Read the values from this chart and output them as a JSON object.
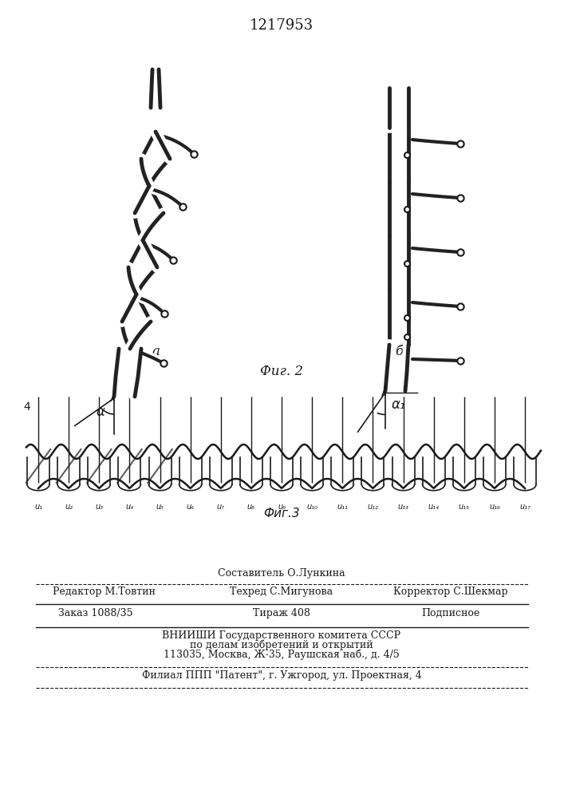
{
  "title": "1217953",
  "fig2_label": "Фиг. 2",
  "fig3_label": "Фиг.3",
  "label_a": "а",
  "label_b": "б",
  "alpha_label": "α",
  "alpha1_label": "α₁",
  "fig4_label": "4",
  "u_labels": [
    "u₁",
    "u₂",
    "u₃",
    "u₄",
    "u₅",
    "u₆",
    "u₇",
    "u₈",
    "u₉",
    "u₁₀",
    "u₁₁",
    "u₁₂",
    "u₁₃",
    "u₁₄",
    "u₁₅",
    "u₁₆",
    "u₁₇"
  ],
  "editor_line": "Редактор М.Товтин",
  "composer_line": "Составитель О.Лункина",
  "techred_line": "Техред С.Мигунова",
  "corrector_line": "Корректор С.Шекмар",
  "order_line": "Заказ 1088/35",
  "tirazh_line": "Тираж 408",
  "podpisnoe_line": "Подписное",
  "vniishi_line": "ВНИИШИ Государственного комитета СССР",
  "po_delam_line": "по делам изобретений и открытий",
  "address_line": "113035, Москва, Ж-35, Раушская наб., д. 4/5",
  "filial_line": "Филиал ППП \"Патент\", г. Ужгород, ул. Проектная, 4",
  "bg_color": "#ffffff",
  "line_color": "#1a1a1a",
  "text_color": "#1a1a1a"
}
